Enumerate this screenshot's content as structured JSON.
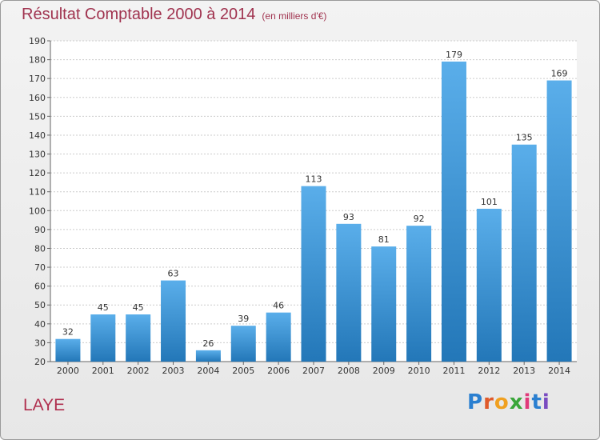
{
  "header": {
    "title": "Résultat Comptable 2000 à 2014",
    "subtitle": "(en milliers d'€)"
  },
  "footer": {
    "place": "LAYE",
    "logo": "Proxiti"
  },
  "colors": {
    "bar_top": "#5aaeea",
    "bar_bottom": "#2377b8",
    "title": "#a0334f",
    "grid": "#cccccc"
  },
  "chart_data": {
    "type": "bar",
    "title": "Résultat Comptable 2000 à 2014",
    "xlabel": "",
    "ylabel": "",
    "categories": [
      "2000",
      "2001",
      "2002",
      "2003",
      "2004",
      "2005",
      "2006",
      "2007",
      "2008",
      "2009",
      "2010",
      "2011",
      "2012",
      "2013",
      "2014"
    ],
    "values": [
      32,
      45,
      45,
      63,
      26,
      39,
      46,
      113,
      93,
      81,
      92,
      179,
      101,
      135,
      169
    ],
    "ylim": [
      20,
      190
    ],
    "ytick_step": 10,
    "grid": true,
    "show_value_labels": true
  }
}
